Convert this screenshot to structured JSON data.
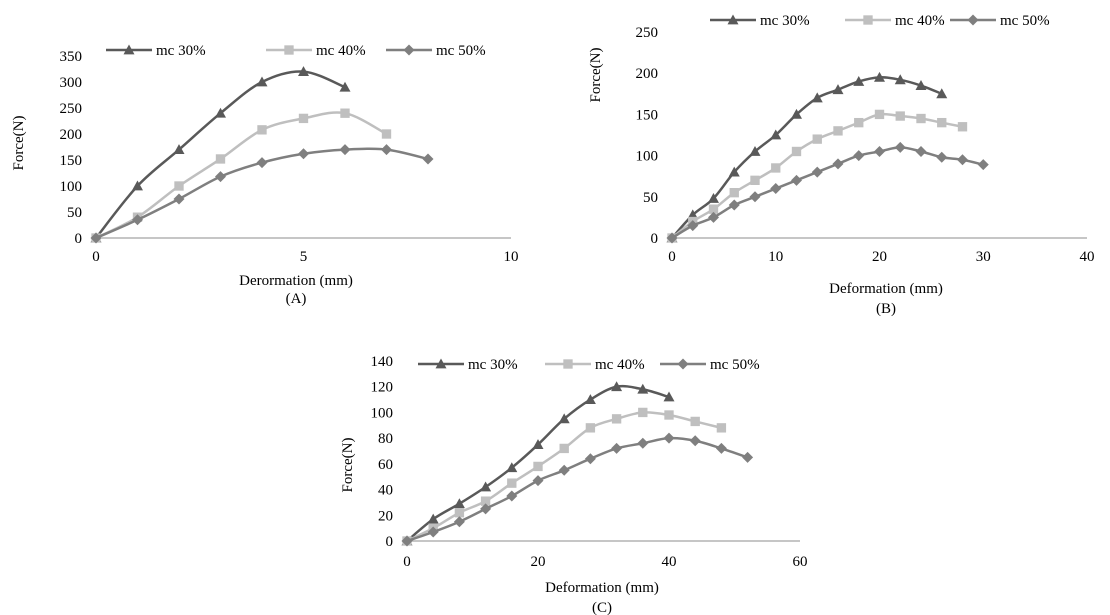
{
  "series_styles": [
    {
      "name": "mc 30%",
      "color": "#595959",
      "marker": "triangle"
    },
    {
      "name": "mc 40%",
      "color": "#bfbfbf",
      "marker": "square"
    },
    {
      "name": "mc 50%",
      "color": "#7f7f7f",
      "marker": "diamond"
    }
  ],
  "chart_data": [
    {
      "type": "line",
      "caption": "(A)",
      "xlabel": "Derormation (mm)",
      "ylabel": "Force(N)",
      "xlim": [
        0,
        10
      ],
      "ylim": [
        0,
        350
      ],
      "xticks": [
        0,
        5,
        10
      ],
      "yticks": [
        0,
        50,
        100,
        150,
        200,
        250,
        300,
        350
      ],
      "grid": false,
      "legend_position": "top",
      "series": [
        {
          "name": "mc 30%",
          "x": [
            0,
            1,
            2,
            3,
            4,
            5,
            6
          ],
          "y": [
            0,
            100,
            170,
            240,
            300,
            320,
            290
          ]
        },
        {
          "name": "mc 40%",
          "x": [
            0,
            1,
            2,
            3,
            4,
            5,
            6,
            7
          ],
          "y": [
            0,
            40,
            100,
            152,
            208,
            230,
            240,
            200
          ]
        },
        {
          "name": "mc 50%",
          "x": [
            0,
            1,
            2,
            3,
            4,
            5,
            6,
            7,
            8
          ],
          "y": [
            0,
            35,
            75,
            118,
            145,
            162,
            170,
            170,
            152
          ]
        }
      ]
    },
    {
      "type": "line",
      "caption": "(B)",
      "xlabel": "Deformation (mm)",
      "ylabel": "Force(N)",
      "xlim": [
        0,
        40
      ],
      "ylim": [
        0,
        250
      ],
      "xticks": [
        0,
        10,
        20,
        30,
        40
      ],
      "yticks": [
        0,
        50,
        100,
        150,
        200,
        250
      ],
      "grid": false,
      "legend_position": "top",
      "series": [
        {
          "name": "mc 30%",
          "x": [
            0,
            2,
            4,
            6,
            8,
            10,
            12,
            14,
            16,
            18,
            20,
            22,
            24,
            26
          ],
          "y": [
            0,
            28,
            48,
            80,
            105,
            125,
            150,
            170,
            180,
            190,
            195,
            192,
            185,
            175
          ]
        },
        {
          "name": "mc 40%",
          "x": [
            0,
            2,
            4,
            6,
            8,
            10,
            12,
            14,
            16,
            18,
            20,
            22,
            24,
            26,
            28
          ],
          "y": [
            0,
            20,
            35,
            55,
            70,
            85,
            105,
            120,
            130,
            140,
            150,
            148,
            145,
            140,
            135
          ]
        },
        {
          "name": "mc 50%",
          "x": [
            0,
            2,
            4,
            6,
            8,
            10,
            12,
            14,
            16,
            18,
            20,
            22,
            24,
            26,
            28,
            30
          ],
          "y": [
            0,
            15,
            25,
            40,
            50,
            60,
            70,
            80,
            90,
            100,
            105,
            110,
            105,
            98,
            95,
            89
          ]
        }
      ]
    },
    {
      "type": "line",
      "caption": "(C)",
      "xlabel": "Deformation (mm)",
      "ylabel": "Force(N)",
      "xlim": [
        0,
        60
      ],
      "ylim": [
        0,
        140
      ],
      "xticks": [
        0,
        20,
        40,
        60
      ],
      "yticks": [
        0,
        20,
        40,
        60,
        80,
        100,
        120,
        140
      ],
      "grid": false,
      "legend_position": "top",
      "series": [
        {
          "name": "mc 30%",
          "x": [
            0,
            4,
            8,
            12,
            16,
            20,
            24,
            28,
            32,
            36,
            40
          ],
          "y": [
            0,
            17,
            29,
            42,
            57,
            75,
            95,
            110,
            120,
            118,
            112
          ]
        },
        {
          "name": "mc 40%",
          "x": [
            0,
            4,
            8,
            12,
            16,
            20,
            24,
            28,
            32,
            36,
            40,
            44,
            48
          ],
          "y": [
            0,
            10,
            22,
            31,
            45,
            58,
            72,
            88,
            95,
            100,
            98,
            93,
            88
          ]
        },
        {
          "name": "mc 50%",
          "x": [
            0,
            4,
            8,
            12,
            16,
            20,
            24,
            28,
            32,
            36,
            40,
            44,
            48,
            52
          ],
          "y": [
            0,
            7,
            15,
            25,
            35,
            47,
            55,
            64,
            72,
            76,
            80,
            78,
            72,
            65
          ]
        }
      ]
    }
  ]
}
